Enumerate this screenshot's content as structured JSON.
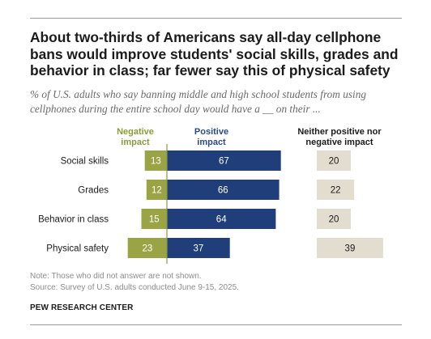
{
  "title": "About two-thirds of Americans say all-day cellphone bans would improve students' social skills, grades and behavior in class; far fewer say this of physical safety",
  "subtitle": "% of U.S. adults who say banning middle and high school students from using cellphones during the entire school day would have a __ on their ...",
  "colors": {
    "negative": "#9aa444",
    "positive": "#1f3e7a",
    "neither": "#e3ddcf",
    "negative_header": "#8c9a3c",
    "positive_header": "#2c4a86"
  },
  "chart_data": {
    "type": "bar",
    "orientation": "horizontal",
    "stacking": "diverging",
    "categories": [
      "Social skills",
      "Grades",
      "Behavior in class",
      "Physical safety"
    ],
    "series": [
      {
        "name": "Negative impact",
        "values": [
          13,
          12,
          15,
          23
        ]
      },
      {
        "name": "Positive impact",
        "values": [
          67,
          66,
          64,
          37
        ]
      },
      {
        "name": "Neither positive nor negative impact",
        "values": [
          20,
          22,
          20,
          39
        ]
      }
    ],
    "headers": {
      "negative": "Negative impact",
      "positive": "Positive impact",
      "neither": "Neither positive nor negative impact"
    }
  },
  "note": "Note: Those who did not answer are not shown.",
  "source": "Source: Survey of U.S. adults conducted June 9-15, 2025.",
  "organization": "PEW RESEARCH CENTER"
}
